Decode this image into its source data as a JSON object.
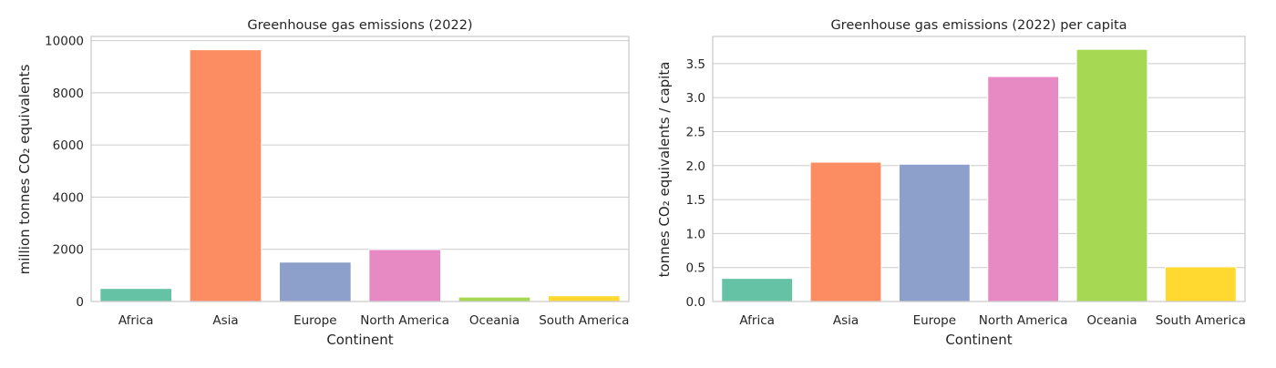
{
  "chart_data": [
    {
      "type": "bar",
      "title": "Greenhouse gas emissions (2022)",
      "xlabel": "Continent",
      "ylabel": "million tonnes CO₂ equivalents",
      "categories": [
        "Africa",
        "Asia",
        "Europe",
        "North America",
        "Oceania",
        "South America"
      ],
      "values": [
        500,
        9650,
        1510,
        1990,
        170,
        220
      ],
      "ylim": [
        0,
        10160
      ],
      "yticks": [
        0,
        2000,
        4000,
        6000,
        8000,
        10000
      ],
      "ytick_labels": [
        "0",
        "2000",
        "4000",
        "6000",
        "8000",
        "10000"
      ],
      "grid": "horizontal",
      "colors": [
        "#66c2a5",
        "#fc8d62",
        "#8da0cb",
        "#e78ac3",
        "#a6d854",
        "#ffd92f"
      ]
    },
    {
      "type": "bar",
      "title": "Greenhouse gas emissions (2022) per capita",
      "xlabel": "Continent",
      "ylabel": "tonnes CO₂ equivalents / capita",
      "categories": [
        "Africa",
        "Asia",
        "Europe",
        "North America",
        "Oceania",
        "South America"
      ],
      "values": [
        0.34,
        2.05,
        2.02,
        3.31,
        3.71,
        0.51
      ],
      "ylim": [
        0,
        3.9
      ],
      "yticks": [
        0,
        0.5,
        1.0,
        1.5,
        2.0,
        2.5,
        3.0,
        3.5
      ],
      "ytick_labels": [
        "0.0",
        "0.5",
        "1.0",
        "1.5",
        "2.0",
        "2.5",
        "3.0",
        "3.5"
      ],
      "grid": "horizontal",
      "colors": [
        "#66c2a5",
        "#fc8d62",
        "#8da0cb",
        "#e78ac3",
        "#a6d854",
        "#ffd92f"
      ]
    }
  ]
}
